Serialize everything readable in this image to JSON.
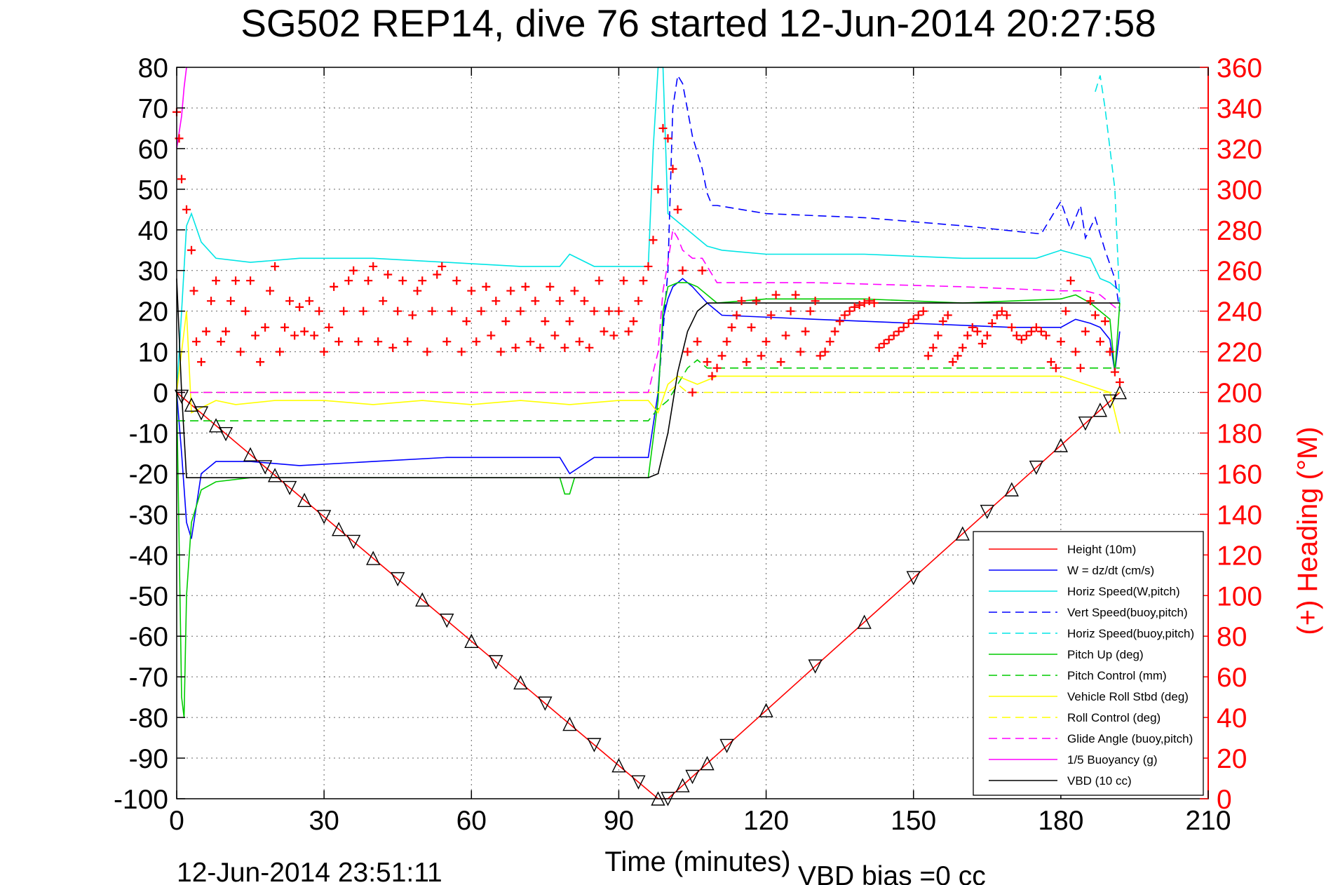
{
  "chart_data": {
    "type": "line",
    "title": "SG502 REP14, dive 76 started 12-Jun-2014 20:27:58",
    "xlabel": "Time (minutes)",
    "ylabel": "",
    "ylabel_right": "(+) Heading (°M)",
    "xlim": [
      0,
      210
    ],
    "ylim": [
      -100,
      80
    ],
    "ylim_right": [
      0,
      360
    ],
    "xticks": [
      0,
      30,
      60,
      90,
      120,
      150,
      180,
      210
    ],
    "yticks": [
      -100,
      -90,
      -80,
      -70,
      -60,
      -50,
      -40,
      -30,
      -20,
      -10,
      0,
      10,
      20,
      30,
      40,
      50,
      60,
      70,
      80
    ],
    "yticks_right": [
      0,
      20,
      40,
      60,
      80,
      100,
      120,
      140,
      160,
      180,
      200,
      220,
      240,
      260,
      280,
      300,
      320,
      340,
      360
    ],
    "grid": true,
    "legend_position": "bottom-right",
    "footer_left": "12-Jun-2014 23:51:11",
    "footer_right": "VBD bias =0 cc",
    "colors": {
      "heading": "#ff0000",
      "depth_markers": "#000000"
    },
    "series": [
      {
        "name": "Height (10m)",
        "color": "#ff0000",
        "dash": "solid",
        "x": [
          0,
          98,
          100,
          192
        ],
        "y": [
          0,
          -100,
          -100,
          0
        ]
      },
      {
        "name": "W = dz/dt (cm/s)",
        "color": "#0000ff",
        "dash": "solid",
        "x": [
          0,
          1,
          2,
          3,
          5,
          8,
          15,
          25,
          40,
          55,
          70,
          78,
          80,
          85,
          96,
          98,
          99,
          100,
          101,
          103,
          105,
          108,
          111,
          130,
          150,
          170,
          180,
          183,
          186,
          188,
          190,
          191,
          192
        ],
        "y": [
          0,
          -15,
          -32,
          -36,
          -20,
          -17,
          -17,
          -18,
          -17,
          -16,
          -16,
          -16,
          -20,
          -16,
          -16,
          0,
          18,
          23,
          26,
          28,
          26,
          22,
          19,
          18,
          17,
          16,
          16,
          18,
          17,
          16,
          13,
          5,
          15
        ]
      },
      {
        "name": "Horiz Speed(W,pitch)",
        "color": "#00e5e5",
        "dash": "solid",
        "x": [
          0,
          1,
          2,
          3,
          5,
          8,
          15,
          25,
          40,
          55,
          70,
          78,
          80,
          85,
          96,
          97,
          98,
          99,
          100,
          102,
          104,
          106,
          108,
          111,
          120,
          140,
          160,
          175,
          180,
          183,
          186,
          188,
          190,
          192
        ],
        "y": [
          0,
          20,
          41,
          44,
          37,
          33,
          32,
          33,
          33,
          32,
          31,
          31,
          34,
          31,
          31,
          60,
          80,
          80,
          44,
          42,
          40,
          38,
          36,
          35,
          34,
          34,
          33,
          33,
          35,
          34,
          33,
          28,
          27,
          25
        ]
      },
      {
        "name": "Vert Speed(buoy,pitch)",
        "color": "#0000ff",
        "dash": "dash",
        "x": [
          98,
          100,
          101,
          102,
          103,
          105,
          107,
          108,
          109,
          110,
          120,
          140,
          160,
          176,
          180,
          182,
          184,
          185,
          187,
          189,
          191,
          192
        ],
        "y": [
          0,
          30,
          70,
          78,
          76,
          63,
          55,
          49,
          46,
          46,
          44,
          43,
          41,
          39,
          47,
          40,
          46,
          38,
          43,
          35,
          28,
          20
        ]
      },
      {
        "name": "Horiz Speed(buoy,pitch)",
        "color": "#00e5e5",
        "dash": "dash",
        "x": [
          187,
          188,
          189,
          190,
          191,
          192
        ],
        "y": [
          74,
          78,
          70,
          60,
          50,
          22
        ]
      },
      {
        "name": "Pitch Up (deg)",
        "color": "#00cc00",
        "dash": "solid",
        "x": [
          0,
          1,
          1.5,
          2,
          3,
          5,
          8,
          15,
          25,
          40,
          55,
          70,
          78,
          79,
          80,
          81,
          85,
          96,
          98,
          99,
          100,
          102,
          104,
          106,
          108,
          110,
          120,
          140,
          160,
          180,
          183,
          186,
          188,
          190,
          191,
          192
        ],
        "y": [
          0,
          -75,
          -80,
          -50,
          -32,
          -24,
          -22,
          -21,
          -21,
          -21,
          -21,
          -21,
          -21,
          -25,
          -25,
          -21,
          -21,
          -21,
          -2,
          20,
          26,
          27,
          27,
          26,
          24,
          22,
          23,
          23,
          22,
          23,
          24,
          22,
          20,
          18,
          5,
          22
        ]
      },
      {
        "name": "Pitch Control (mm)",
        "color": "#00cc00",
        "dash": "dash",
        "x": [
          0,
          96,
          98,
          100,
          102,
          104,
          106,
          107,
          108,
          110,
          192
        ],
        "y": [
          -7,
          -7,
          -4,
          -2,
          2,
          6,
          8,
          7,
          6,
          6,
          6
        ]
      },
      {
        "name": "Vehicle Roll Stbd (deg)",
        "color": "#ffff00",
        "dash": "solid",
        "x": [
          0,
          2,
          3,
          8,
          12,
          20,
          30,
          40,
          50,
          60,
          70,
          80,
          90,
          96,
          98,
          100,
          102,
          104,
          106,
          108,
          110,
          120,
          140,
          160,
          180,
          185,
          190,
          192
        ],
        "y": [
          0,
          20,
          -5,
          -2,
          -3,
          -2,
          -2,
          -3,
          -2,
          -3,
          -2,
          -3,
          -2,
          -2,
          -5,
          2,
          4,
          3,
          2,
          3,
          4,
          4,
          4,
          4,
          4,
          2,
          0,
          -10
        ]
      },
      {
        "name": "Roll Control (deg)",
        "color": "#ffff00",
        "dash": "dash",
        "x": [
          0,
          100,
          102,
          104,
          108,
          110,
          192
        ],
        "y": [
          0,
          0,
          2,
          0,
          0,
          0,
          0
        ]
      },
      {
        "name": "Glide Angle (buoy,pitch)",
        "color": "#ff00ff",
        "dash": "dash",
        "x": [
          0,
          96,
          98,
          99,
          100,
          101,
          102,
          103,
          105,
          107,
          108,
          110,
          130,
          160,
          180,
          185,
          188,
          190,
          192
        ],
        "y": [
          0,
          0,
          10,
          25,
          32,
          40,
          38,
          35,
          33,
          33,
          31,
          27,
          27,
          26,
          25,
          25,
          24,
          22,
          20
        ]
      },
      {
        "name": "1/5 Buoyancy (g)",
        "color": "#ff00ff",
        "dash": "solid",
        "x": [
          0,
          1,
          1.5,
          2
        ],
        "y": [
          60,
          68,
          75,
          80
        ]
      },
      {
        "name": "VBD (10 cc)",
        "color": "#000000",
        "dash": "solid",
        "x": [
          0,
          1,
          2,
          50,
          96,
          98,
          100,
          102,
          104,
          106,
          108,
          109,
          140,
          170,
          190,
          191,
          192
        ],
        "y": [
          28,
          0,
          -21,
          -21,
          -21,
          -20,
          -10,
          5,
          15,
          20,
          22,
          22,
          22,
          22,
          22,
          22,
          22
        ]
      }
    ],
    "depth_marker_times": [
      1,
      3,
      5,
      8,
      10,
      15,
      18,
      20,
      23,
      26,
      30,
      33,
      36,
      40,
      45,
      50,
      55,
      60,
      65,
      70,
      75,
      80,
      85,
      90,
      94,
      98,
      100,
      103,
      105,
      108,
      112,
      120,
      130,
      140,
      150,
      160,
      165,
      170,
      175,
      180,
      185,
      188,
      190,
      192
    ],
    "heading_series": {
      "name": "(+) Heading",
      "x": [
        0,
        0.5,
        1,
        2,
        3,
        3.5,
        4,
        5,
        6,
        7,
        8,
        9,
        10,
        11,
        12,
        13,
        14,
        15,
        16,
        17,
        18,
        19,
        20,
        21,
        22,
        23,
        24,
        25,
        26,
        27,
        28,
        29,
        30,
        31,
        32,
        33,
        34,
        35,
        36,
        37,
        38,
        39,
        40,
        41,
        42,
        43,
        44,
        45,
        46,
        47,
        48,
        49,
        50,
        51,
        52,
        53,
        54,
        55,
        56,
        57,
        58,
        59,
        60,
        61,
        62,
        63,
        64,
        65,
        66,
        67,
        68,
        69,
        70,
        71,
        72,
        73,
        74,
        75,
        76,
        77,
        78,
        79,
        80,
        81,
        82,
        83,
        84,
        85,
        86,
        87,
        88,
        89,
        90,
        91,
        92,
        93,
        94,
        95,
        96,
        97,
        98,
        99,
        100,
        101,
        102,
        103,
        104,
        105,
        106,
        107,
        108,
        109,
        110,
        111,
        112,
        113,
        114,
        115,
        116,
        117,
        118,
        119,
        120,
        121,
        122,
        123,
        124,
        125,
        126,
        127,
        128,
        129,
        130,
        131,
        132,
        133,
        134,
        135,
        136,
        137,
        138,
        139,
        140,
        141,
        142,
        143,
        144,
        145,
        146,
        147,
        148,
        149,
        150,
        151,
        152,
        153,
        154,
        155,
        156,
        157,
        158,
        159,
        160,
        161,
        162,
        163,
        164,
        165,
        166,
        167,
        168,
        169,
        170,
        171,
        172,
        173,
        174,
        175,
        176,
        177,
        178,
        179,
        180,
        181,
        182,
        183,
        184,
        185,
        186,
        187,
        188,
        189,
        190,
        191,
        192
      ],
      "y": [
        338,
        325,
        305,
        290,
        270,
        250,
        225,
        215,
        230,
        245,
        255,
        225,
        230,
        245,
        255,
        220,
        240,
        255,
        228,
        215,
        232,
        250,
        262,
        220,
        232,
        245,
        228,
        242,
        230,
        245,
        228,
        240,
        220,
        232,
        252,
        225,
        240,
        255,
        260,
        225,
        240,
        255,
        262,
        225,
        245,
        258,
        222,
        240,
        255,
        225,
        238,
        250,
        255,
        220,
        240,
        258,
        262,
        225,
        240,
        255,
        220,
        235,
        250,
        225,
        240,
        252,
        228,
        245,
        220,
        235,
        250,
        222,
        240,
        252,
        225,
        245,
        222,
        235,
        252,
        228,
        245,
        222,
        235,
        250,
        225,
        245,
        222,
        240,
        255,
        230,
        240,
        228,
        240,
        255,
        230,
        235,
        245,
        255,
        262,
        275,
        300,
        330,
        325,
        310,
        290,
        260,
        220,
        200,
        225,
        260,
        215,
        208,
        212,
        218,
        225,
        232,
        238,
        245,
        215,
        232,
        245,
        218,
        225,
        238,
        248,
        215,
        228,
        240,
        248,
        220,
        230,
        240,
        245,
        218,
        220,
        225,
        230,
        235,
        238,
        240,
        242,
        243,
        244,
        245,
        244,
        222,
        224,
        226,
        228,
        230,
        232,
        234,
        236,
        238,
        240,
        218,
        222,
        228,
        235,
        238,
        215,
        218,
        222,
        228,
        232,
        230,
        224,
        228,
        234,
        238,
        240,
        238,
        232,
        228,
        226,
        228,
        230,
        232,
        230,
        228,
        215,
        212,
        225,
        240,
        255,
        220,
        212,
        230,
        245,
        238,
        225,
        235,
        220,
        210,
        205
      ]
    },
    "legend_entries": [
      "Height (10m)",
      "W = dz/dt (cm/s)",
      "Horiz Speed(W,pitch)",
      "Vert Speed(buoy,pitch)",
      "Horiz Speed(buoy,pitch)",
      "Pitch Up (deg)",
      "Pitch Control (mm)",
      "Vehicle Roll Stbd (deg)",
      "Roll Control (deg)",
      "Glide Angle (buoy,pitch)",
      "1/5 Buoyancy (g)",
      "VBD (10 cc)"
    ]
  }
}
